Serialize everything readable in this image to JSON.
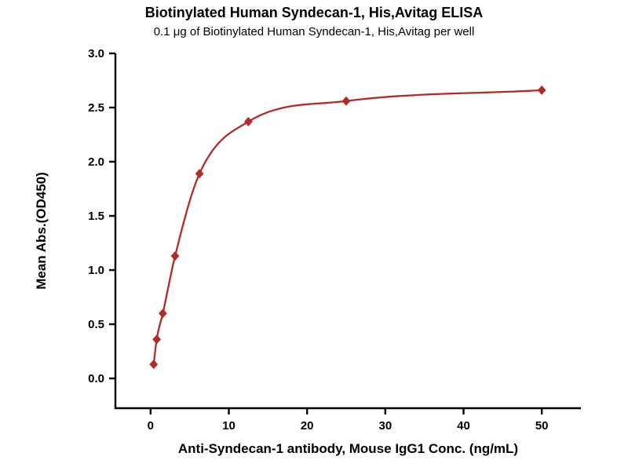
{
  "chart_data": {
    "type": "line",
    "title": "Biotinylated Human Syndecan-1, His,Avitag ELISA",
    "subtitle": "0.1 μg of Biotinylated Human Syndecan-1, His,Avitag per well",
    "xlabel": "Anti-Syndecan-1 antibody, Mouse IgG1 Conc. (ng/mL)",
    "ylabel": "Mean Abs.(OD450)",
    "x": [
      0.39,
      0.78,
      1.56,
      3.13,
      6.25,
      12.5,
      25,
      50
    ],
    "y": [
      0.13,
      0.36,
      0.6,
      1.13,
      1.89,
      2.37,
      2.56,
      2.66
    ],
    "xlim": [
      -4.5,
      55
    ],
    "ylim": [
      -0.275,
      3.0
    ],
    "xticks": [
      0,
      10,
      20,
      30,
      40,
      50
    ],
    "xtick_labels": [
      "0",
      "10",
      "20",
      "30",
      "40",
      "50"
    ],
    "yticks": [
      0,
      0.5,
      1,
      1.5,
      2,
      2.5,
      3
    ],
    "ytick_labels": [
      "0.0",
      "0.5",
      "1.0",
      "1.5",
      "2.0",
      "2.5",
      "3.0"
    ],
    "marker": "diamond",
    "line_color": "#B02C2A",
    "marker_color": "#B02C2A",
    "axis_color": "#000000",
    "grid": false,
    "legend_position": "none"
  }
}
